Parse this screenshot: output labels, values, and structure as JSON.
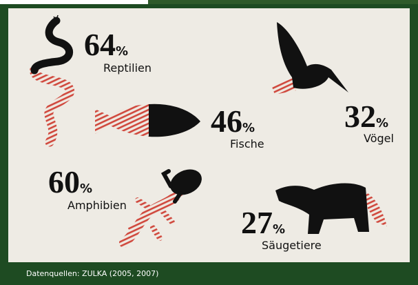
{
  "items": [
    {
      "value": 64,
      "unit": "%",
      "label": "Reptilien"
    },
    {
      "value": 32,
      "unit": "%",
      "label": "Vögel"
    },
    {
      "value": 46,
      "unit": "%",
      "label": "Fische"
    },
    {
      "value": 60,
      "unit": "%",
      "label": "Amphibien"
    },
    {
      "value": 27,
      "unit": "%",
      "label": "Säugetiere"
    }
  ],
  "footer": "Datenquellen: ZULKA (2005, 2007)"
}
